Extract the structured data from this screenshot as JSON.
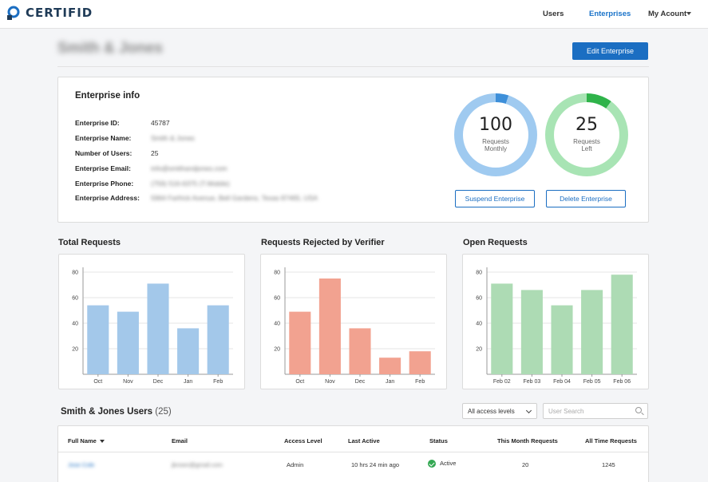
{
  "app": {
    "brand": "CERTIFID"
  },
  "nav": {
    "users": "Users",
    "enterprises": "Enterprises",
    "account": "My Acount"
  },
  "page": {
    "title": "Smith & Jones",
    "edit_button": "Edit Enterprise"
  },
  "enterprise_info": {
    "heading": "Enterprise info",
    "rows": [
      {
        "label": "Enterprise ID:",
        "value": "45787"
      },
      {
        "label": "Enterprise Name:",
        "value": "Smith & Jones"
      },
      {
        "label": "Number of Users:",
        "value": "25"
      },
      {
        "label": "Enterprise Email:",
        "value": "info@smithandjones.com"
      },
      {
        "label": "Enterprise Phone:",
        "value": "(759) 516-6375 (T-Mobile)"
      },
      {
        "label": "Enterprise Address:",
        "value": "5964 Farfrick Avenue, Bell Gardens, Texas 87465, USA"
      }
    ]
  },
  "stats": {
    "monthly": {
      "value": "100",
      "label_1": "Requests",
      "label_2": "Monthly",
      "fraction": 0.05,
      "color": "#3d8fd9",
      "track": "#9fcaf0"
    },
    "left": {
      "value": "25",
      "label_1": "Requests",
      "label_2": "Left",
      "fraction": 0.1,
      "color": "#2fb34a",
      "track": "#a8e4b4"
    }
  },
  "actions": {
    "suspend": "Suspend Enterprise",
    "delete": "Delete Enterprise"
  },
  "charts_meta": {
    "total": "Total Requests",
    "rejected": "Requests Rejected by Verifier",
    "open": "Open Requests"
  },
  "chart_data": [
    {
      "type": "bar",
      "title": "Total Requests",
      "categories": [
        "Oct",
        "Nov",
        "Dec",
        "Jan",
        "Feb"
      ],
      "values": [
        54,
        49,
        71,
        36,
        54
      ],
      "ylim": [
        0,
        80
      ],
      "yticks": [
        20,
        40,
        60,
        80
      ],
      "color": "#a3c8ea",
      "grid": true
    },
    {
      "type": "bar",
      "title": "Requests Rejected by Verifier",
      "categories": [
        "Oct",
        "Nov",
        "Dec",
        "Jan",
        "Feb"
      ],
      "values": [
        49,
        75,
        36,
        13,
        18
      ],
      "ylim": [
        0,
        80
      ],
      "yticks": [
        20,
        40,
        60,
        80
      ],
      "color": "#f2a290",
      "grid": true
    },
    {
      "type": "bar",
      "title": "Open Requests",
      "categories": [
        "Feb 02",
        "Feb 03",
        "Feb 04",
        "Feb 05",
        "Feb 06"
      ],
      "values": [
        71,
        66,
        54,
        66,
        78
      ],
      "ylim": [
        0,
        80
      ],
      "yticks": [
        20,
        40,
        60,
        80
      ],
      "color": "#addbb4",
      "grid": true
    }
  ],
  "users": {
    "title": "Smith & Jones Users",
    "count": "(25)",
    "filter": "All access levels",
    "search_placeholder": "User Search",
    "columns": [
      "Full Name",
      "Email",
      "Access Level",
      "Last Active",
      "Status",
      "This Month Requests",
      "All Time  Requests"
    ],
    "rows": [
      {
        "name": "Jose Cole",
        "email": "jbrown@gmail.com",
        "access": "Admin",
        "last_active": "10 hrs 24 min ago",
        "status": "Active",
        "month": "20",
        "all_time": "1245"
      }
    ]
  }
}
